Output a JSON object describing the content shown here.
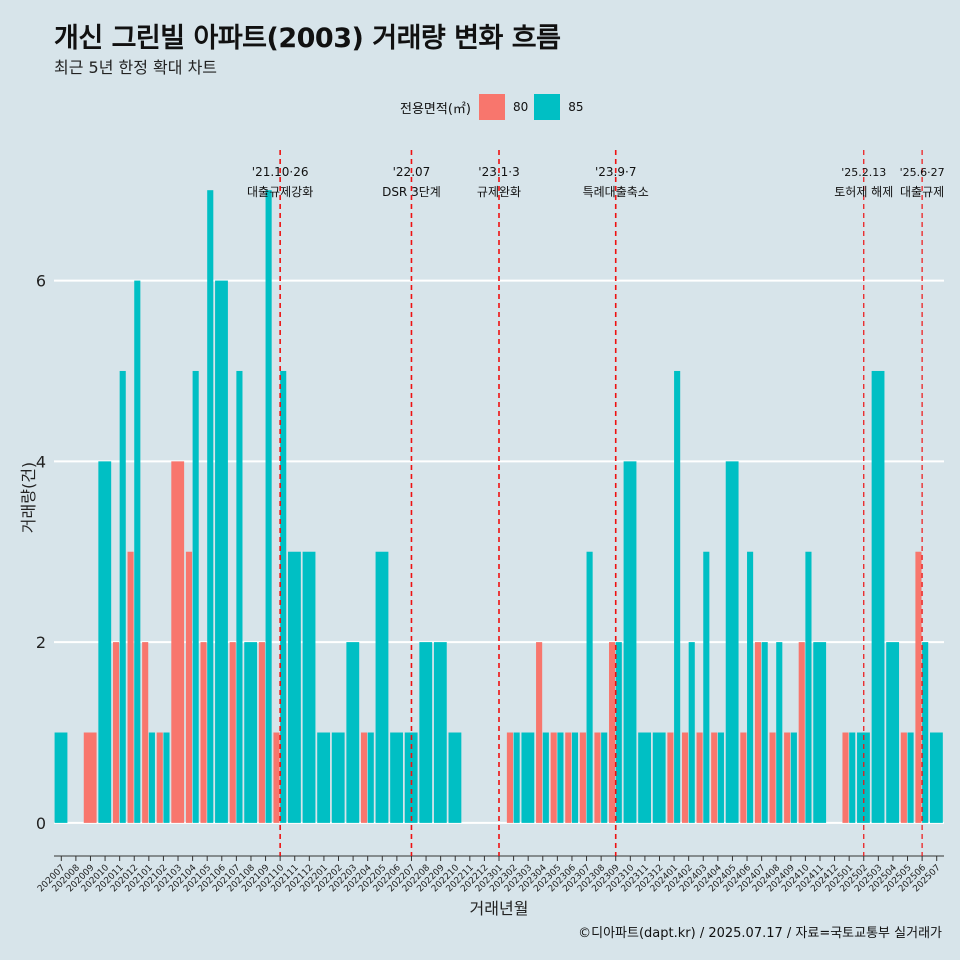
{
  "header": {
    "title": "개신 그린빌 아파트(2003) 거래량 변화 흐름",
    "subtitle": "최근 5년 한정 확대 차트"
  },
  "legend": {
    "title": "전용면적(㎡)",
    "items": [
      {
        "label": "80",
        "color": "#f8766d"
      },
      {
        "label": "85",
        "color": "#00bfc4"
      }
    ]
  },
  "caption": "©디아파트(dapt.kr) / 2025.07.17 / 자료=국토교통부 실거래가",
  "chart_data": {
    "type": "bar",
    "xlabel": "거래년월",
    "ylabel": "거래량(건)",
    "ylim": [
      -0.3,
      7.5
    ],
    "yticks": [
      0,
      2,
      4,
      6
    ],
    "grid": true,
    "legend_position": "top",
    "categories": [
      "202007",
      "202008",
      "202009",
      "202010",
      "202011",
      "202012",
      "202101",
      "202102",
      "202103",
      "202104",
      "202105",
      "202106",
      "202107",
      "202108",
      "202109",
      "202110",
      "202111",
      "202112",
      "202201",
      "202202",
      "202203",
      "202204",
      "202205",
      "202206",
      "202207",
      "202208",
      "202209",
      "202210",
      "202211",
      "202212",
      "202301",
      "202302",
      "202303",
      "202304",
      "202305",
      "202306",
      "202307",
      "202308",
      "202309",
      "202310",
      "202311",
      "202312",
      "202401",
      "202402",
      "202403",
      "202404",
      "202405",
      "202406",
      "202407",
      "202408",
      "202409",
      "202410",
      "202411",
      "202412",
      "202501",
      "202502",
      "202503",
      "202504",
      "202505",
      "202506",
      "202507"
    ],
    "series": [
      {
        "name": "80",
        "color": "#f8766d",
        "values": [
          0,
          0,
          1,
          0,
          2,
          3,
          2,
          1,
          4,
          3,
          2,
          0,
          2,
          0,
          2,
          1,
          0,
          0,
          0,
          0,
          0,
          1,
          0,
          0,
          0,
          0,
          0,
          0,
          0,
          0,
          0,
          1,
          0,
          2,
          1,
          1,
          1,
          1,
          2,
          0,
          0,
          0,
          1,
          1,
          1,
          1,
          0,
          1,
          2,
          1,
          1,
          2,
          0,
          0,
          1,
          0,
          0,
          0,
          1,
          3,
          0
        ]
      },
      {
        "name": "85",
        "color": "#00bfc4",
        "values": [
          1,
          0,
          0,
          4,
          5,
          6,
          1,
          1,
          0,
          5,
          7,
          6,
          5,
          2,
          7,
          5,
          3,
          3,
          1,
          1,
          2,
          1,
          3,
          1,
          1,
          2,
          2,
          1,
          0,
          0,
          0,
          1,
          1,
          1,
          1,
          1,
          3,
          1,
          2,
          4,
          1,
          1,
          5,
          2,
          3,
          1,
          4,
          3,
          2,
          2,
          1,
          3,
          2,
          0,
          1,
          1,
          5,
          2,
          1,
          2,
          1
        ]
      }
    ],
    "annotations": [
      {
        "month": "202110",
        "date": "'21.10·26",
        "label": "대출규제강화"
      },
      {
        "month": "202207",
        "date": "'22.07",
        "label": "DSR 3단계"
      },
      {
        "month": "202301",
        "date": "'23.1·3",
        "label": "규제완화"
      },
      {
        "month": "202309",
        "date": "'23.9·7",
        "label": "특례대출축소"
      },
      {
        "month": "202502",
        "date": "'25.2.13",
        "label": "토허제 해제"
      },
      {
        "month": "202506",
        "date": "'25.6·27",
        "label": "대출규제"
      }
    ]
  }
}
